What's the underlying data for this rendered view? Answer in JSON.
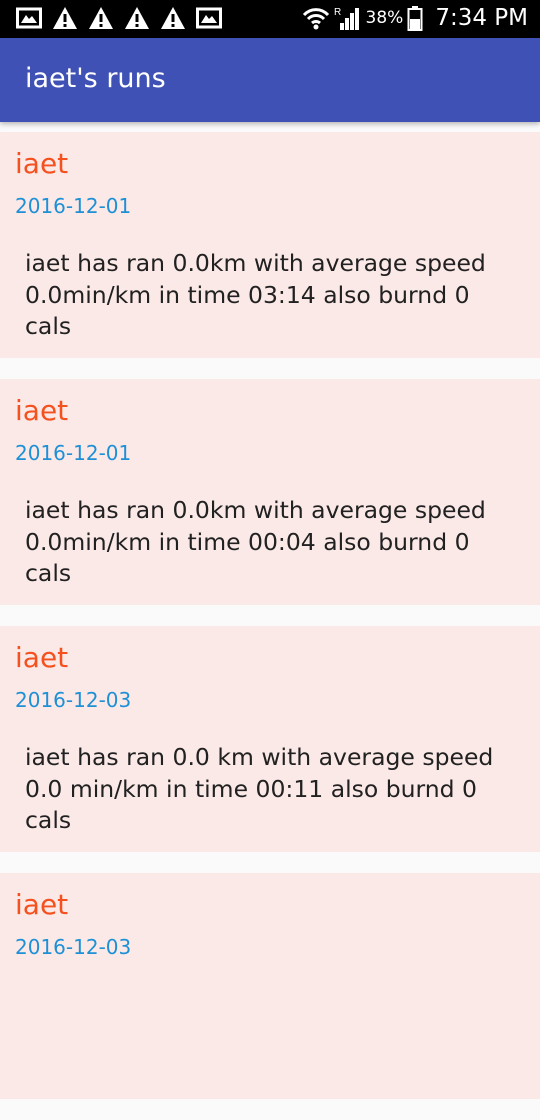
{
  "status_bar": {
    "left_icons": [
      "gallery-icon",
      "warning-icon",
      "warning-icon",
      "warning-icon",
      "warning-icon",
      "gallery-icon"
    ],
    "battery": "38%",
    "time": "7:34 PM"
  },
  "app_bar": {
    "title": "iaet's runs",
    "color": "#3f51b5"
  },
  "runs": [
    {
      "name": "iaet",
      "date": "2016-12-01",
      "description": "iaet has ran  0.0km  with average speed 0.0min/km  in time 03:14 also burnd 0 cals"
    },
    {
      "name": "iaet",
      "date": "2016-12-01",
      "description": "iaet has ran  0.0km  with average speed 0.0min/km  in time 00:04 also burnd 0 cals"
    },
    {
      "name": "iaet",
      "date": "2016-12-03",
      "description": "iaet has ran  0.0 km  with average speed 0.0 min/km  in time 00:11 also burnd 0 cals"
    },
    {
      "name": "iaet",
      "date": "2016-12-03",
      "description": ""
    }
  ]
}
